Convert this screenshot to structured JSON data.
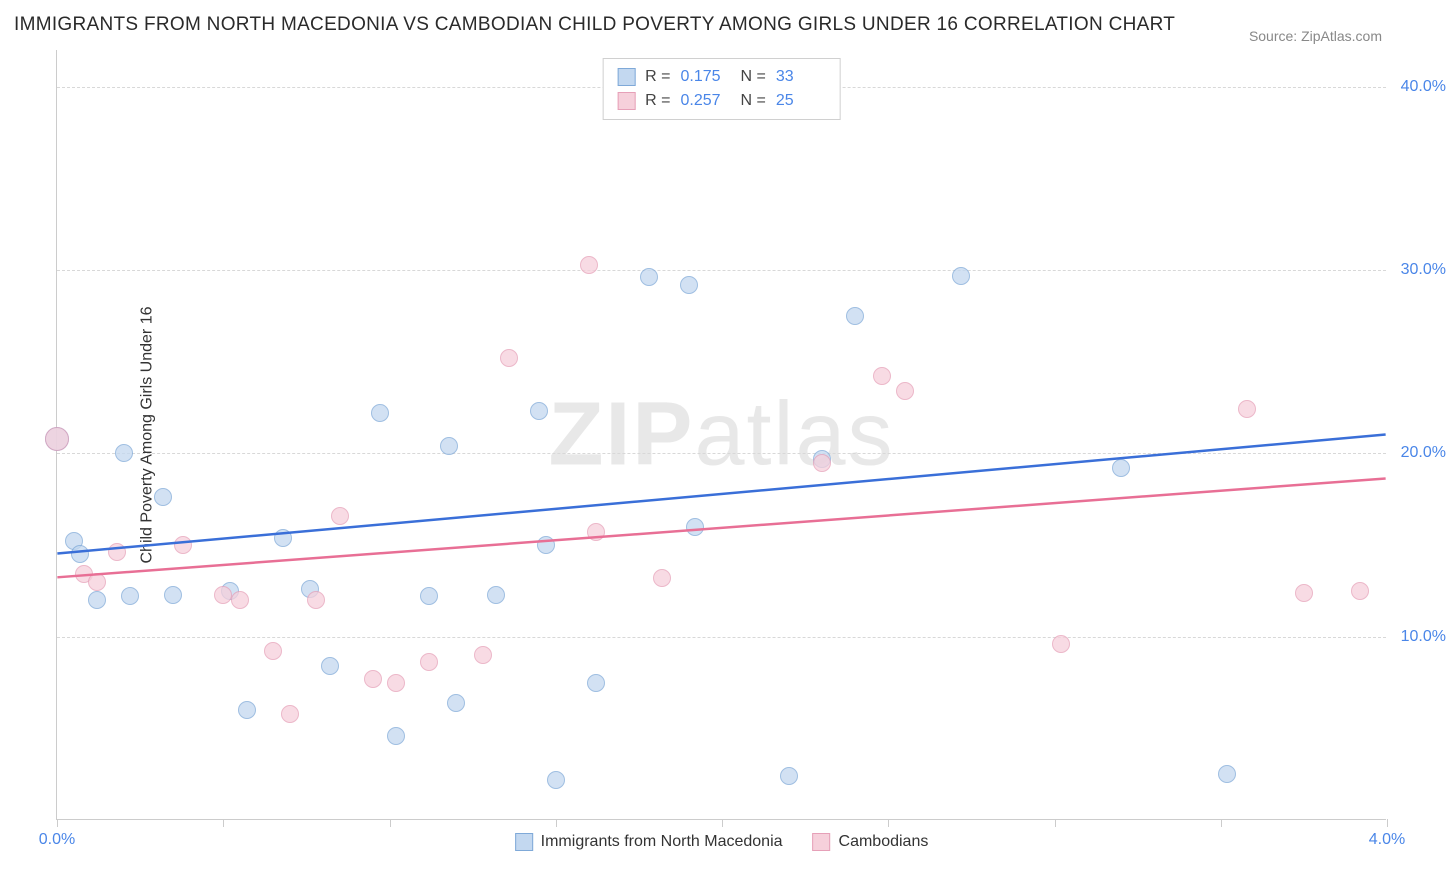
{
  "title": "IMMIGRANTS FROM NORTH MACEDONIA VS CAMBODIAN CHILD POVERTY AMONG GIRLS UNDER 16 CORRELATION CHART",
  "source": "Source: ZipAtlas.com",
  "watermark_a": "ZIP",
  "watermark_b": "atlas",
  "ylabel": "Child Poverty Among Girls Under 16",
  "chart": {
    "type": "scatter",
    "xlim": [
      0.0,
      4.0
    ],
    "ylim": [
      0.0,
      42.0
    ],
    "xticks": [
      0.0,
      0.5,
      1.0,
      1.5,
      2.0,
      2.5,
      3.0,
      3.5,
      4.0
    ],
    "xtick_labels": [
      "0.0%",
      "",
      "",
      "",
      "",
      "",
      "",
      "",
      "4.0%"
    ],
    "yticks": [
      10.0,
      20.0,
      30.0,
      40.0
    ],
    "ytick_labels": [
      "10.0%",
      "20.0%",
      "30.0%",
      "40.0%"
    ],
    "grid_color": "#d8d8d8",
    "background_color": "#ffffff",
    "axis_color": "#cccccc",
    "tick_label_color": "#4a86e8",
    "series": [
      {
        "id": "blue",
        "name": "Immigrants from North Macedonia",
        "fill": "#c3d8f0",
        "stroke": "#7fa9d8",
        "line_color": "#3a6fd8",
        "R": "0.175",
        "N": "33",
        "trend": {
          "x1": 0.0,
          "y1": 14.5,
          "x2": 4.0,
          "y2": 21.0
        },
        "points": [
          {
            "x": 0.0,
            "y": 20.8,
            "big": true
          },
          {
            "x": 0.05,
            "y": 15.2
          },
          {
            "x": 0.07,
            "y": 14.5
          },
          {
            "x": 0.12,
            "y": 12.0
          },
          {
            "x": 0.2,
            "y": 20.0
          },
          {
            "x": 0.22,
            "y": 12.2
          },
          {
            "x": 0.32,
            "y": 17.6
          },
          {
            "x": 0.35,
            "y": 12.3
          },
          {
            "x": 0.52,
            "y": 12.5
          },
          {
            "x": 0.57,
            "y": 6.0
          },
          {
            "x": 0.68,
            "y": 15.4
          },
          {
            "x": 0.76,
            "y": 12.6
          },
          {
            "x": 0.82,
            "y": 8.4
          },
          {
            "x": 0.97,
            "y": 22.2
          },
          {
            "x": 1.02,
            "y": 4.6
          },
          {
            "x": 1.12,
            "y": 12.2
          },
          {
            "x": 1.18,
            "y": 20.4
          },
          {
            "x": 1.2,
            "y": 6.4
          },
          {
            "x": 1.32,
            "y": 12.3
          },
          {
            "x": 1.45,
            "y": 22.3
          },
          {
            "x": 1.47,
            "y": 15.0
          },
          {
            "x": 1.5,
            "y": 2.2
          },
          {
            "x": 1.62,
            "y": 7.5
          },
          {
            "x": 1.78,
            "y": 29.6
          },
          {
            "x": 1.9,
            "y": 29.2
          },
          {
            "x": 1.92,
            "y": 16.0
          },
          {
            "x": 2.2,
            "y": 2.4
          },
          {
            "x": 2.3,
            "y": 19.7
          },
          {
            "x": 2.4,
            "y": 27.5
          },
          {
            "x": 2.72,
            "y": 29.7
          },
          {
            "x": 3.2,
            "y": 19.2
          },
          {
            "x": 3.52,
            "y": 2.5
          }
        ]
      },
      {
        "id": "pink",
        "name": "Cambodians",
        "fill": "#f6d0db",
        "stroke": "#e6a0b8",
        "line_color": "#e86f95",
        "R": "0.257",
        "N": "25",
        "trend": {
          "x1": 0.0,
          "y1": 13.2,
          "x2": 4.0,
          "y2": 18.6
        },
        "points": [
          {
            "x": 0.0,
            "y": 20.8,
            "big": true
          },
          {
            "x": 0.08,
            "y": 13.4
          },
          {
            "x": 0.12,
            "y": 13.0
          },
          {
            "x": 0.18,
            "y": 14.6
          },
          {
            "x": 0.38,
            "y": 15.0
          },
          {
            "x": 0.5,
            "y": 12.3
          },
          {
            "x": 0.55,
            "y": 12.0
          },
          {
            "x": 0.65,
            "y": 9.2
          },
          {
            "x": 0.7,
            "y": 5.8
          },
          {
            "x": 0.78,
            "y": 12.0
          },
          {
            "x": 0.85,
            "y": 16.6
          },
          {
            "x": 0.95,
            "y": 7.7
          },
          {
            "x": 1.02,
            "y": 7.5
          },
          {
            "x": 1.12,
            "y": 8.6
          },
          {
            "x": 1.28,
            "y": 9.0
          },
          {
            "x": 1.36,
            "y": 25.2
          },
          {
            "x": 1.6,
            "y": 30.3
          },
          {
            "x": 1.62,
            "y": 15.7
          },
          {
            "x": 1.82,
            "y": 13.2
          },
          {
            "x": 2.3,
            "y": 19.5
          },
          {
            "x": 2.48,
            "y": 24.2
          },
          {
            "x": 2.55,
            "y": 23.4
          },
          {
            "x": 3.02,
            "y": 9.6
          },
          {
            "x": 3.58,
            "y": 22.4
          },
          {
            "x": 3.75,
            "y": 12.4
          },
          {
            "x": 3.92,
            "y": 12.5
          }
        ]
      }
    ]
  },
  "stat_legend_labels": {
    "R": "R =",
    "N": "N ="
  }
}
